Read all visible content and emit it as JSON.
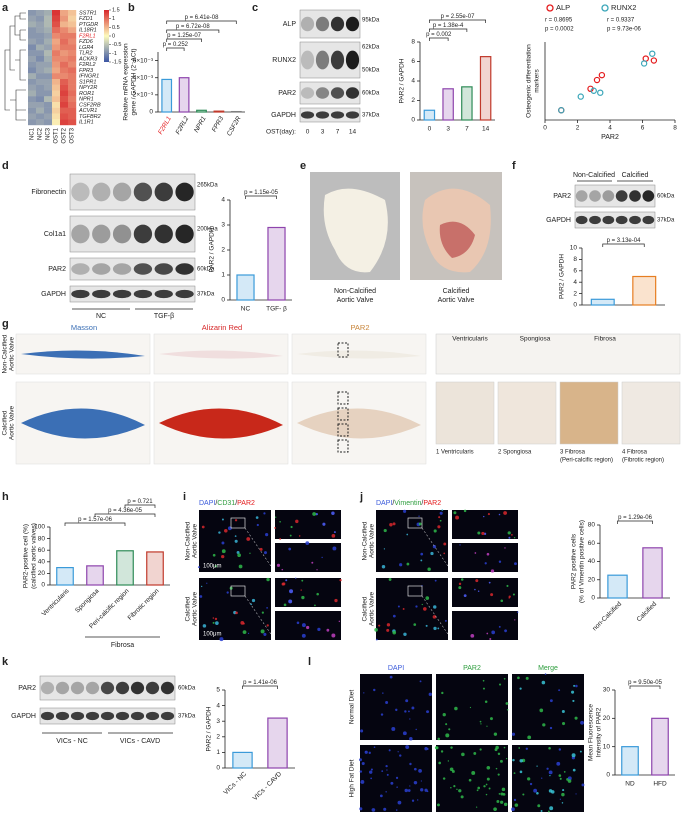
{
  "panel_labels": [
    "a",
    "b",
    "c",
    "d",
    "e",
    "f",
    "g",
    "h",
    "i",
    "j",
    "k",
    "l"
  ],
  "chart_data": [
    {
      "type": "heatmap",
      "rows": [
        "SSTR1",
        "FZD1",
        "PTGDR",
        "IL18R1",
        "F2RL1",
        "FZD6",
        "LGR4",
        "TLR2",
        "ACKR3",
        "F2RL2",
        "FPR3",
        "IFNGR1",
        "S1PR1",
        "NPY2R",
        "ROR1",
        "NPR1",
        "CSF2RB",
        "ACVR1",
        "TGFBR2",
        "IL1R1"
      ],
      "columns": [
        "NC1",
        "NC2",
        "NC3",
        "OST1",
        "OST2",
        "OST3"
      ],
      "values": [
        [
          -0.9,
          -0.8,
          -0.7,
          1.4,
          0.6,
          0.4
        ],
        [
          -0.8,
          -0.9,
          -0.6,
          1.3,
          0.7,
          0.3
        ],
        [
          -0.7,
          -0.8,
          -0.6,
          1.2,
          0.5,
          0.4
        ],
        [
          -0.9,
          -0.8,
          -0.7,
          1.0,
          0.8,
          0.6
        ],
        [
          -0.9,
          -0.9,
          -0.8,
          0.8,
          0.9,
          0.9
        ],
        [
          -0.8,
          -0.9,
          -0.7,
          0.6,
          1.0,
          0.8
        ],
        [
          -1.0,
          -0.7,
          -0.8,
          0.7,
          0.9,
          0.9
        ],
        [
          -0.9,
          -0.9,
          -0.6,
          0.9,
          0.7,
          0.8
        ],
        [
          -0.8,
          -1.0,
          -0.7,
          0.8,
          0.8,
          0.9
        ],
        [
          -0.9,
          -0.8,
          -0.8,
          0.7,
          1.0,
          0.8
        ],
        [
          -1.0,
          -0.8,
          -0.7,
          0.6,
          0.9,
          1.0
        ],
        [
          -0.7,
          -0.9,
          -0.9,
          0.8,
          0.8,
          0.9
        ],
        [
          -0.9,
          -0.8,
          -0.8,
          0.5,
          1.1,
          0.9
        ],
        [
          -0.8,
          -0.9,
          -0.8,
          0.4,
          1.2,
          0.9
        ],
        [
          -0.7,
          -0.9,
          -0.9,
          0.3,
          1.3,
          1.0
        ],
        [
          -0.9,
          -1.0,
          -0.6,
          0.4,
          1.2,
          0.9
        ],
        [
          -0.8,
          -0.8,
          -0.9,
          0.2,
          1.3,
          1.0
        ],
        [
          -0.9,
          -0.7,
          -0.9,
          0.3,
          1.1,
          1.1
        ],
        [
          -0.8,
          -0.9,
          -0.8,
          0.2,
          1.2,
          1.1
        ],
        [
          -0.9,
          -0.8,
          -0.9,
          0.1,
          1.3,
          1.2
        ]
      ],
      "colors": [
        "#3b55a4",
        "#fdfbbd",
        "#d7262b"
      ],
      "zlim": [
        -1.5,
        1.5
      ],
      "zticks": [
        1.5,
        1,
        0.5,
        0,
        -0.5,
        -1,
        -1.5
      ],
      "highlight": "F2RL1",
      "highlight_color": "#e41a1c"
    },
    {
      "type": "bar",
      "ylabel": [
        "Relative mRNA expression",
        "gene / GAPDH (2⁻ΔCt)"
      ],
      "categories": [
        "F2RL1",
        "F2RL2",
        "NPR1",
        "FPR3",
        "CSF2R"
      ],
      "category_colors": [
        "#e41a1c",
        "#222222",
        "#222222",
        "#222222",
        "#222222"
      ],
      "values": [
        0.0038,
        0.004,
        0.0002,
        0.0001,
        5e-05
      ],
      "colors": [
        "#3a9ad9",
        "#8e44ad",
        "#2e8b57",
        "#c0392b",
        "#7f7f7f"
      ],
      "ylim": [
        0,
        0.007
      ],
      "yticks": [
        0,
        {
          "value": 0.002,
          "label": "2×10⁻³"
        },
        {
          "value": 0.004,
          "label": "4×10⁻³"
        },
        {
          "value": 0.006,
          "label": "6×10⁻³"
        }
      ],
      "comparisons": [
        {
          "label": "p = 0.252",
          "between": [
            0,
            1
          ]
        },
        {
          "label": "p = 1.25e-07",
          "between": [
            0,
            2
          ]
        },
        {
          "label": "p = 6.72e-08",
          "between": [
            0,
            3
          ]
        },
        {
          "label": "p = 6.41e-08",
          "between": [
            0,
            4
          ]
        }
      ]
    },
    {
      "type": "bar",
      "ylabel": "PAR2 / GAPDH",
      "categories": [
        "0",
        "3",
        "7",
        "14"
      ],
      "values": [
        1.0,
        3.2,
        3.4,
        6.5
      ],
      "colors": [
        "#3a9ad9",
        "#8e44ad",
        "#2e8b57",
        "#c0392b"
      ],
      "ylim": [
        0,
        8
      ],
      "yticks": [
        0,
        2,
        4,
        6,
        8
      ],
      "comparisons": [
        {
          "label": "p = 0.002",
          "between": [
            0,
            1
          ]
        },
        {
          "label": "p = 1.38e-4",
          "between": [
            0,
            2
          ]
        },
        {
          "label": "p = 2.55e-07",
          "between": [
            0,
            3
          ]
        }
      ]
    },
    {
      "type": "scatter",
      "xlabel": "PAR2",
      "ylabel": [
        "Osteogenic differentiation",
        "markers"
      ],
      "xlim": [
        0,
        8
      ],
      "xticks": [
        0,
        2,
        4,
        6,
        8
      ],
      "ylim": [
        0,
        8
      ],
      "series": [
        {
          "name": "ALP",
          "color": "#e41a1c",
          "x": [
            1,
            2.8,
            3.2,
            3.5,
            6.2,
            6.7
          ],
          "values": [
            1,
            3.2,
            4.1,
            4.6,
            6.3,
            6.1
          ]
        },
        {
          "name": "RUNX2",
          "color": "#3aa6b9",
          "x": [
            1,
            2.2,
            3.0,
            3.4,
            6.1,
            6.6
          ],
          "values": [
            1,
            2.4,
            3.0,
            2.8,
            5.8,
            6.8
          ]
        }
      ],
      "stats": [
        [
          "r = 0.8695",
          "p = 0.0002"
        ],
        [
          "r = 0.9337",
          "p = 9.73e-06"
        ]
      ],
      "legend": "top"
    },
    {
      "type": "bar",
      "ylabel": "PAR2 / GAPDH",
      "categories": [
        "NC",
        "TGF- β"
      ],
      "values": [
        1.0,
        2.9
      ],
      "colors": [
        "#3a9ad9",
        "#8e44ad"
      ],
      "ylim": [
        0,
        4
      ],
      "yticks": [
        0,
        1,
        2,
        3,
        4
      ],
      "comparisons": [
        {
          "label": "p = 1.15e-05",
          "between": [
            0,
            1
          ]
        }
      ]
    },
    {
      "type": "bar",
      "ylabel": "PAR2 / GAPDH",
      "categories": [
        null,
        null
      ],
      "values": [
        1.0,
        5.0
      ],
      "colors": [
        "#3a9ad9",
        "#e67e22"
      ],
      "ylim": [
        0,
        10
      ],
      "yticks": [
        0,
        2,
        4,
        6,
        8,
        10
      ],
      "comparisons": [
        {
          "label": "p = 3.13e-04",
          "between": [
            0,
            1
          ]
        }
      ]
    },
    {
      "type": "bar",
      "ylabel": [
        "PAR2-positive cell (%)",
        "(calcified aortic valves)"
      ],
      "categories": [
        "Ventricularis",
        "Spongiosa",
        "Peri-calcific region",
        "Fibrotic region"
      ],
      "values": [
        30,
        33,
        59,
        57
      ],
      "colors": [
        "#3a9ad9",
        "#8e44ad",
        "#2e8b57",
        "#c0392b"
      ],
      "ylim": [
        0,
        100
      ],
      "yticks": [
        0,
        20,
        40,
        60,
        80,
        100
      ],
      "comparisons": [
        {
          "label": "p = 1.57e-06",
          "between": [
            0,
            2
          ]
        },
        {
          "label": "p = 4.36e-05",
          "between": [
            1,
            3
          ]
        },
        {
          "label": "p = 0.721",
          "between": [
            2,
            3
          ]
        }
      ],
      "group": {
        "label": "Fibrosa",
        "between": [
          2,
          3
        ]
      }
    },
    {
      "type": "bar",
      "ylabel": [
        "PAR2 positive cells",
        "(% of Vimentin positive cells)"
      ],
      "categories": [
        "non-Calcified",
        "Calcified"
      ],
      "values": [
        25,
        55
      ],
      "colors": [
        "#3a9ad9",
        "#8e44ad"
      ],
      "ylim": [
        0,
        80
      ],
      "yticks": [
        0,
        20,
        40,
        60,
        80
      ],
      "comparisons": [
        {
          "label": "p = 1.29e-06",
          "between": [
            0,
            1
          ]
        }
      ]
    },
    {
      "type": "bar",
      "ylabel": "PAR2 / GAPDH",
      "categories": [
        "VICs - NC",
        "VICs - CAVD"
      ],
      "values": [
        1.0,
        3.2
      ],
      "colors": [
        "#3a9ad9",
        "#8e44ad"
      ],
      "ylim": [
        0,
        5
      ],
      "yticks": [
        0,
        1,
        2,
        3,
        4,
        5
      ],
      "comparisons": [
        {
          "label": "p = 1.41e-06",
          "between": [
            0,
            1
          ]
        }
      ]
    },
    {
      "type": "bar",
      "ylabel": [
        "Mean Fluorescence",
        "Intensity of PAR2"
      ],
      "categories": [
        "ND",
        "HFD"
      ],
      "values": [
        10,
        20
      ],
      "colors": [
        "#3a9ad9",
        "#8e44ad"
      ],
      "ylim": [
        0,
        30
      ],
      "yticks": [
        0,
        10,
        20,
        30
      ],
      "comparisons": [
        {
          "label": "p = 9.50e-05",
          "between": [
            0,
            1
          ]
        }
      ]
    }
  ],
  "blot_c": {
    "bands": [
      "ALP",
      "RUNX2",
      "PAR2",
      "GAPDH"
    ],
    "sizes": [
      "95kDa",
      "62kDa",
      "50kDa",
      "60kDa",
      "37kDa"
    ],
    "lane_title": "OST(day):",
    "lanes": [
      "0",
      "3",
      "7",
      "14"
    ]
  },
  "blot_d": {
    "bands": [
      "Fibronectin",
      "Col1a1",
      "PAR2",
      "GAPDH"
    ],
    "sizes": [
      "265kDa",
      "200kDa",
      "60kDa",
      "37kDa"
    ],
    "groups": [
      "NC",
      "TGF-β"
    ]
  },
  "photo_e": {
    "captions": [
      [
        "Non-Calcified",
        "Aortic Valve"
      ],
      [
        "Calcified",
        "Aortic Valve"
      ]
    ]
  },
  "blot_f": {
    "groups": [
      "Non-Calcified",
      "Calcified"
    ],
    "bands": [
      "PAR2",
      "GAPDH"
    ],
    "sizes": [
      "60kDa",
      "37kDa"
    ]
  },
  "histology_g": {
    "stains": [
      "Masson",
      "Alizarin Red",
      "PAR2"
    ],
    "rows": [
      [
        "Non-Calcified",
        "Aortic Valve"
      ],
      [
        "Calcified",
        "Aortic Valve"
      ]
    ],
    "layers": [
      "Ventricularis",
      "Spongiosa",
      "Fibrosa"
    ],
    "zooms": [
      [
        "1 Ventricularis"
      ],
      [
        "2 Spongiosa"
      ],
      [
        "3 Fibrosa",
        "(Peri-calcific region)"
      ],
      [
        "4 Fibrosa",
        "(Fibrotic region)"
      ]
    ]
  },
  "if_i": {
    "channels": [
      {
        "text": "DAPI",
        "color": "#3b5bdb"
      },
      {
        "text": "CD31",
        "color": "#2e9e3e"
      },
      {
        "text": "PAR2",
        "color": "#e41a1c"
      }
    ],
    "separator": "/",
    "rows": [
      [
        "Non-Calcified",
        "Aortic Valve"
      ],
      [
        "Calcified",
        "Aortic Valve"
      ]
    ],
    "scale": "100μm"
  },
  "if_j": {
    "channels": [
      {
        "text": "DAPI",
        "color": "#3b5bdb"
      },
      {
        "text": "Vimentin",
        "color": "#2e9e3e"
      },
      {
        "text": "PAR2",
        "color": "#e41a1c"
      }
    ],
    "separator": "/",
    "rows": [
      [
        "Non-Calcified",
        "Aortic Valve"
      ],
      [
        "Calcified",
        "Aortic Valve"
      ]
    ]
  },
  "blot_k": {
    "bands": [
      "PAR2",
      "GAPDH"
    ],
    "sizes": [
      "60kDa",
      "37kDa"
    ],
    "groups": [
      "VICs - NC",
      "VICs - CAVD"
    ]
  },
  "if_l": {
    "channels": [
      {
        "text": "DAPI",
        "color": "#3b5bdb"
      },
      {
        "text": "PAR2",
        "color": "#2e9e3e"
      },
      {
        "text": "Merge",
        "color": "#2e9e3e"
      }
    ],
    "rows": [
      "Normal Diet",
      "High Fat Diet"
    ]
  }
}
